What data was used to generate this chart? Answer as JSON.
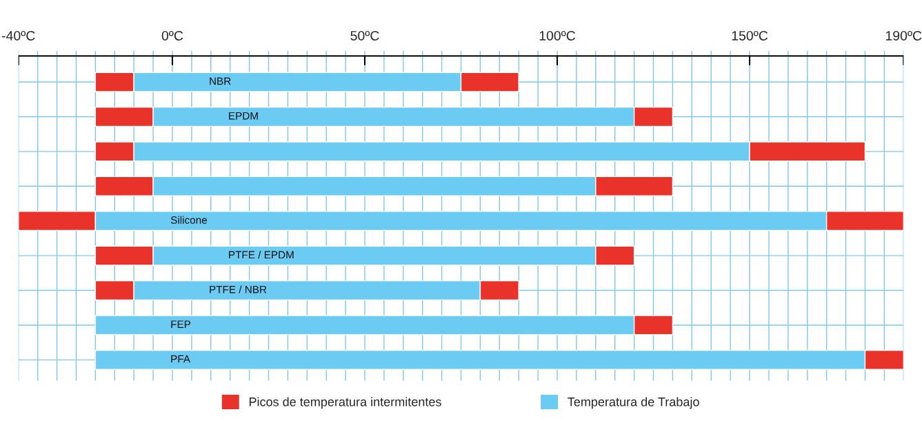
{
  "chart_data": {
    "type": "bar",
    "orientation": "horizontal",
    "categories": [
      "NBR",
      "EPDM",
      null,
      null,
      "Silicone",
      "PTFE / EPDM",
      "PTFE / NBR",
      "FEP",
      "PFA"
    ],
    "series": [
      {
        "name": "Picos de temperatura intermitentes",
        "color": "#e8322a",
        "base": [
          -20,
          -20,
          -20,
          -20,
          -40,
          -20,
          -20,
          null,
          null
        ],
        "values": [
          10,
          15,
          10,
          15,
          20,
          15,
          10,
          null,
          null
        ]
      },
      {
        "name": "Temperatura de Trabajo",
        "color": "#6ccbf2",
        "base": [
          -10,
          -5,
          -10,
          -5,
          -20,
          -5,
          -10,
          -20,
          -20
        ],
        "values": [
          85,
          125,
          160,
          115,
          190,
          115,
          90,
          140,
          200
        ]
      },
      {
        "color": "#e8322a",
        "base": [
          75,
          120,
          150,
          110,
          170,
          110,
          80,
          120,
          180
        ],
        "values": [
          15,
          10,
          30,
          20,
          20,
          10,
          10,
          10,
          10
        ]
      }
    ],
    "xlim": [
      -40,
      190
    ],
    "xticks": [
      {
        "value": -40,
        "label": "-40ºC"
      },
      {
        "value": -35,
        "label": null
      },
      {
        "value": -30,
        "label": null
      },
      {
        "value": -25,
        "label": null
      },
      {
        "value": -20,
        "label": null
      },
      {
        "value": -15,
        "label": null
      },
      {
        "value": -10,
        "label": null
      },
      {
        "value": -5,
        "label": null
      },
      {
        "value": 0,
        "label": "0ºC"
      },
      {
        "value": 5,
        "label": null
      },
      {
        "value": 10,
        "label": null
      },
      {
        "value": 15,
        "label": null
      },
      {
        "value": 20,
        "label": null
      },
      {
        "value": 25,
        "label": null
      },
      {
        "value": 30,
        "label": null
      },
      {
        "value": 35,
        "label": null
      },
      {
        "value": 40,
        "label": null
      },
      {
        "value": 45,
        "label": null
      },
      {
        "value": 50,
        "label": "50ºC"
      },
      {
        "value": 55,
        "label": null
      },
      {
        "value": 60,
        "label": null
      },
      {
        "value": 65,
        "label": null
      },
      {
        "value": 70,
        "label": null
      },
      {
        "value": 75,
        "label": null
      },
      {
        "value": 80,
        "label": null
      },
      {
        "value": 85,
        "label": null
      },
      {
        "value": 90,
        "label": null
      },
      {
        "value": 95,
        "label": null
      },
      {
        "value": 100,
        "label": "100ºC"
      },
      {
        "value": 105,
        "label": null
      },
      {
        "value": 110,
        "label": null
      },
      {
        "value": 115,
        "label": null
      },
      {
        "value": 120,
        "label": null
      },
      {
        "value": 125,
        "label": null
      },
      {
        "value": 130,
        "label": null
      },
      {
        "value": 135,
        "label": null
      },
      {
        "value": 140,
        "label": null
      },
      {
        "value": 145,
        "label": null
      },
      {
        "value": 150,
        "label": "150ºC"
      },
      {
        "value": 155,
        "label": null
      },
      {
        "value": 160,
        "label": null
      },
      {
        "value": 165,
        "label": null
      },
      {
        "value": 170,
        "label": null
      },
      {
        "value": 175,
        "label": null
      },
      {
        "value": 180,
        "label": null
      },
      {
        "value": 185,
        "label": null
      },
      {
        "value": 190,
        "label": "190ºC"
      }
    ],
    "grid": true,
    "legend": "bottom"
  }
}
